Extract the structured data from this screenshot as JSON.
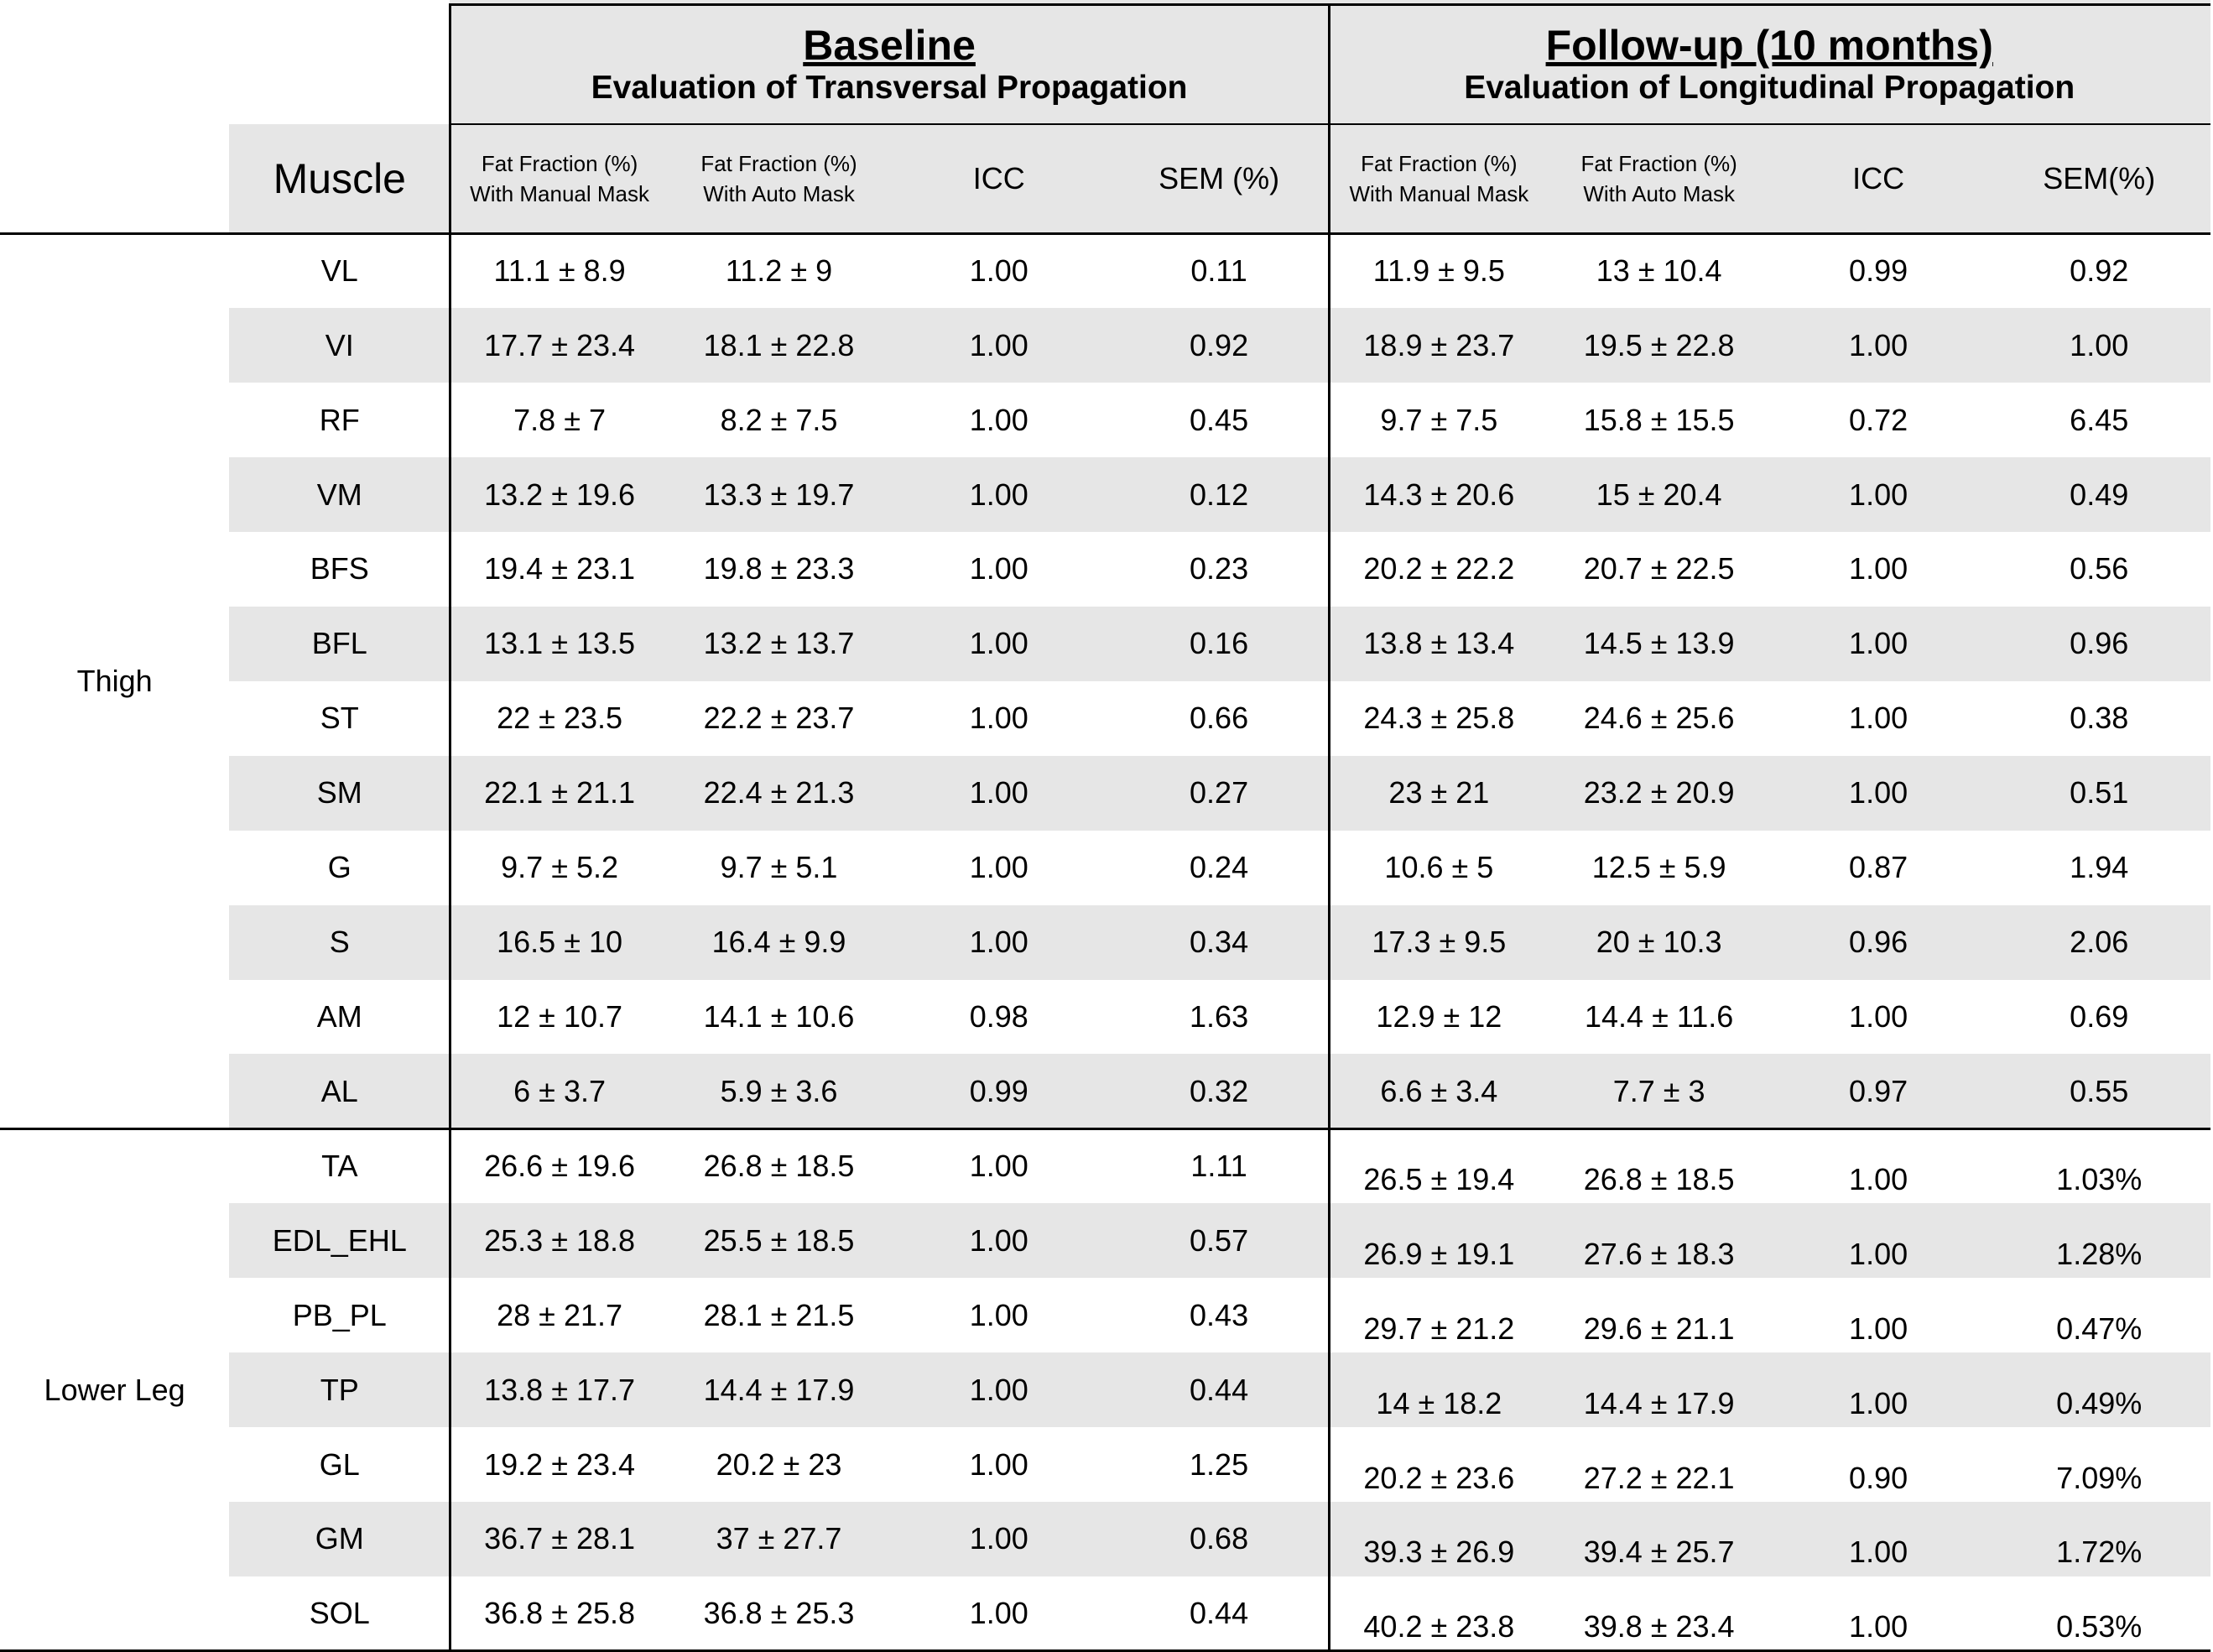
{
  "header": {
    "baseline": {
      "title": "Baseline",
      "subtitle": "Evaluation of Transversal Propagation"
    },
    "followup": {
      "title": "Follow-up (10 months)",
      "subtitle": "Evaluation of Longitudinal Propagation"
    }
  },
  "columns": [
    "Muscle",
    [
      "Fat Fraction (%)",
      "With Manual Mask"
    ],
    [
      "Fat Fraction (%)",
      "With Auto Mask"
    ],
    "ICC",
    "SEM (%)",
    [
      "Fat Fraction (%)",
      "With Manual Mask"
    ],
    [
      "Fat Fraction (%)",
      "With Auto Mask"
    ],
    "ICC",
    "SEM(%)"
  ],
  "groups": [
    {
      "label": "Thigh",
      "rows": [
        [
          "VL",
          "11.1 ± 8.9",
          "11.2 ± 9",
          "1.00",
          "0.11",
          "11.9 ± 9.5",
          "13 ± 10.4",
          "0.99",
          "0.92"
        ],
        [
          "VI",
          "17.7 ± 23.4",
          "18.1 ± 22.8",
          "1.00",
          "0.92",
          "18.9 ± 23.7",
          "19.5 ± 22.8",
          "1.00",
          "1.00"
        ],
        [
          "RF",
          "7.8 ± 7",
          "8.2 ± 7.5",
          "1.00",
          "0.45",
          "9.7 ± 7.5",
          "15.8 ± 15.5",
          "0.72",
          "6.45"
        ],
        [
          "VM",
          "13.2 ± 19.6",
          "13.3 ± 19.7",
          "1.00",
          "0.12",
          "14.3 ± 20.6",
          "15 ± 20.4",
          "1.00",
          "0.49"
        ],
        [
          "BFS",
          "19.4 ± 23.1",
          "19.8 ± 23.3",
          "1.00",
          "0.23",
          "20.2 ± 22.2",
          "20.7 ± 22.5",
          "1.00",
          "0.56"
        ],
        [
          "BFL",
          "13.1 ± 13.5",
          "13.2 ± 13.7",
          "1.00",
          "0.16",
          "13.8 ± 13.4",
          "14.5 ± 13.9",
          "1.00",
          "0.96"
        ],
        [
          "ST",
          "22 ± 23.5",
          "22.2 ± 23.7",
          "1.00",
          "0.66",
          "24.3 ± 25.8",
          "24.6 ± 25.6",
          "1.00",
          "0.38"
        ],
        [
          "SM",
          "22.1 ± 21.1",
          "22.4 ± 21.3",
          "1.00",
          "0.27",
          "23 ± 21",
          "23.2 ± 20.9",
          "1.00",
          "0.51"
        ],
        [
          "G",
          "9.7 ± 5.2",
          "9.7 ± 5.1",
          "1.00",
          "0.24",
          "10.6 ± 5",
          "12.5 ± 5.9",
          "0.87",
          "1.94"
        ],
        [
          "S",
          "16.5 ± 10",
          "16.4 ± 9.9",
          "1.00",
          "0.34",
          "17.3 ± 9.5",
          "20 ± 10.3",
          "0.96",
          "2.06"
        ],
        [
          "AM",
          "12 ± 10.7",
          "14.1 ± 10.6",
          "0.98",
          "1.63",
          "12.9 ± 12",
          "14.4 ± 11.6",
          "1.00",
          "0.69"
        ],
        [
          "AL",
          "6 ± 3.7",
          "5.9 ± 3.6",
          "0.99",
          "0.32",
          "6.6 ± 3.4",
          "7.7 ± 3",
          "0.97",
          "0.55"
        ]
      ]
    },
    {
      "label": "Lower Leg",
      "rows": [
        [
          "TA",
          "26.6 ± 19.6",
          "26.8 ± 18.5",
          "1.00",
          "1.11",
          "26.5 ± 19.4",
          "26.8 ± 18.5",
          "1.00",
          "1.03%"
        ],
        [
          "EDL_EHL",
          "25.3 ± 18.8",
          "25.5 ± 18.5",
          "1.00",
          "0.57",
          "26.9 ± 19.1",
          "27.6 ± 18.3",
          "1.00",
          "1.28%"
        ],
        [
          "PB_PL",
          "28 ± 21.7",
          "28.1 ± 21.5",
          "1.00",
          "0.43",
          "29.7 ± 21.2",
          "29.6 ± 21.1",
          "1.00",
          "0.47%"
        ],
        [
          "TP",
          "13.8 ± 17.7",
          "14.4 ± 17.9",
          "1.00",
          "0.44",
          "14 ± 18.2",
          "14.4 ± 17.9",
          "1.00",
          "0.49%"
        ],
        [
          "GL",
          "19.2 ± 23.4",
          "20.2 ± 23",
          "1.00",
          "1.25",
          "20.2 ± 23.6",
          "27.2 ± 22.1",
          "0.90",
          "7.09%"
        ],
        [
          "GM",
          "36.7 ± 28.1",
          "37 ± 27.7",
          "1.00",
          "0.68",
          "39.3 ± 26.9",
          "39.4 ± 25.7",
          "1.00",
          "1.72%"
        ],
        [
          "SOL",
          "36.8 ± 25.8",
          "36.8 ± 25.3",
          "1.00",
          "0.44",
          "40.2 ± 23.8",
          "39.8 ± 23.4",
          "1.00",
          "0.53%"
        ]
      ]
    }
  ]
}
